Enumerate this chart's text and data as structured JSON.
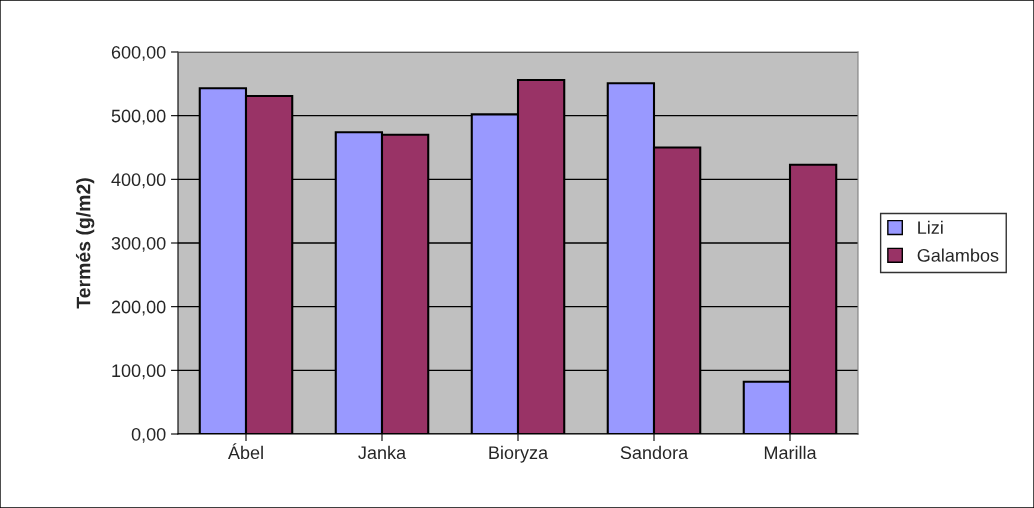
{
  "chart_data": {
    "type": "bar",
    "ylabel": "Termés (g/m2)",
    "categories": [
      "Ábel",
      "Janka",
      "Bioryza",
      "Sandora",
      "Marilla"
    ],
    "series": [
      {
        "name": "Lizi",
        "color": "#9999ff",
        "values": [
          543,
          474,
          502,
          551,
          82
        ]
      },
      {
        "name": "Galambos",
        "color": "#993366",
        "values": [
          531,
          470,
          556,
          450,
          423
        ]
      }
    ],
    "ylim": [
      0,
      600
    ],
    "yticks": [
      {
        "value": 0,
        "label": "0,00"
      },
      {
        "value": 100,
        "label": "100,00"
      },
      {
        "value": 200,
        "label": "200,00"
      },
      {
        "value": 300,
        "label": "300,00"
      },
      {
        "value": 400,
        "label": "400,00"
      },
      {
        "value": 500,
        "label": "500,00"
      },
      {
        "value": 600,
        "label": "600,00"
      }
    ],
    "grid": "y",
    "legend": "right"
  }
}
